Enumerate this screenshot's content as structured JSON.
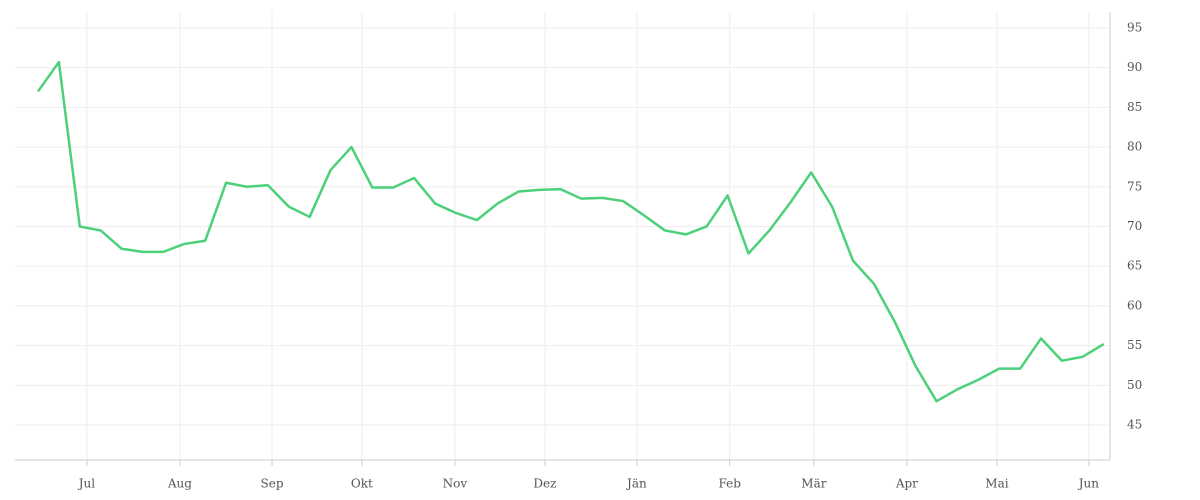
{
  "chart_data": {
    "type": "line",
    "x": [
      0,
      1,
      2,
      3,
      4,
      5,
      6,
      7,
      8,
      9,
      10,
      11,
      12,
      13,
      14,
      15,
      16,
      17,
      18,
      19,
      20,
      21,
      22,
      23,
      24,
      25,
      26,
      27,
      28,
      29,
      30,
      31,
      32,
      33,
      34,
      35,
      36,
      37,
      38,
      39,
      40,
      41,
      42,
      43,
      44,
      45,
      46,
      47,
      48,
      49,
      50,
      51
    ],
    "series": [
      {
        "color": "#4cd17a",
        "values": [
          87.0,
          90.7,
          70.0,
          69.5,
          67.2,
          66.8,
          66.8,
          67.8,
          68.2,
          75.5,
          75.0,
          75.2,
          72.5,
          71.2,
          77.1,
          80.0,
          74.9,
          74.9,
          76.1,
          72.9,
          71.7,
          70.8,
          72.9,
          74.4,
          74.6,
          74.7,
          73.5,
          73.6,
          73.2,
          71.4,
          69.5,
          69.0,
          70.0,
          73.9,
          66.6,
          69.5,
          73.0,
          76.8,
          72.5,
          65.7,
          62.8,
          58.0,
          52.4,
          48.0,
          49.5,
          50.7,
          52.1,
          52.1,
          55.9,
          53.1,
          53.6,
          55.2
        ]
      }
    ],
    "xlim": [
      -1.1,
      51.3
    ],
    "xticks": [
      {
        "value": 2.34,
        "label": "Jul"
      },
      {
        "value": 6.79,
        "label": "Aug"
      },
      {
        "value": 11.2,
        "label": "Sep"
      },
      {
        "value": 15.5,
        "label": "Okt"
      },
      {
        "value": 19.95,
        "label": "Nov"
      },
      {
        "value": 24.26,
        "label": "Dez"
      },
      {
        "value": 28.66,
        "label": "Jän"
      },
      {
        "value": 33.1,
        "label": "Feb"
      },
      {
        "value": 37.13,
        "label": "Mär"
      },
      {
        "value": 41.58,
        "label": "Apr"
      },
      {
        "value": 45.89,
        "label": "Mai"
      },
      {
        "value": 50.29,
        "label": "Jun"
      }
    ],
    "ylim": [
      40.6,
      97
    ],
    "yticks": [
      45,
      50,
      55,
      60,
      65,
      70,
      75,
      80,
      85,
      90,
      95
    ],
    "grid": true
  }
}
